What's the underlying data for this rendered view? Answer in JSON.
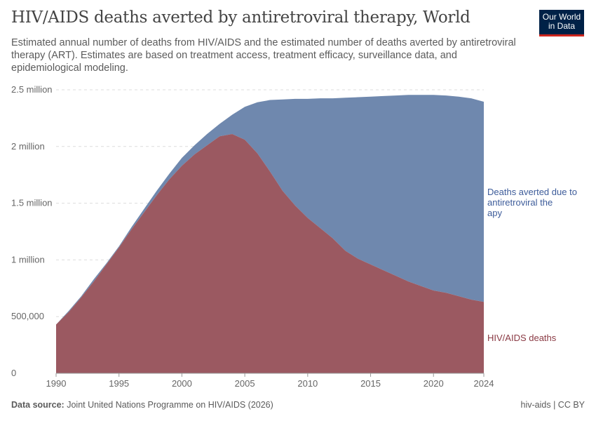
{
  "title": "HIV/AIDS deaths averted by antiretroviral therapy, World",
  "subtitle": "Estimated annual number of deaths from HIV/AIDS and the estimated number of deaths averted by antiretroviral therapy (ART). Estimates are based on treatment access, treatment efficacy, surveillance data, and epidemiological modeling.",
  "logo": {
    "line1": "Our World",
    "line2": "in Data"
  },
  "footer": {
    "source_label": "Data source:",
    "source": "Joint United Nations Programme on HIV/AIDS (2026)",
    "license": "hiv-aids | CC BY"
  },
  "colors": {
    "deaths": "#9b5961",
    "averted": "#6f88ae",
    "deaths_label": "#8a3a44",
    "averted_label": "#3d5c9a"
  },
  "chart_data": {
    "type": "area",
    "stacked": true,
    "title": "HIV/AIDS deaths averted by antiretroviral therapy, World",
    "x": [
      1990,
      1991,
      1992,
      1993,
      1994,
      1995,
      1996,
      1997,
      1998,
      1999,
      2000,
      2001,
      2002,
      2003,
      2004,
      2005,
      2006,
      2007,
      2008,
      2009,
      2010,
      2011,
      2012,
      2013,
      2014,
      2015,
      2016,
      2017,
      2018,
      2019,
      2020,
      2021,
      2022,
      2023,
      2024
    ],
    "series": [
      {
        "name": "HIV/AIDS deaths",
        "values": [
          430000,
          540000,
          670000,
          810000,
          960000,
          1110000,
          1270000,
          1420000,
          1570000,
          1710000,
          1830000,
          1930000,
          2010000,
          2090000,
          2110000,
          2060000,
          1940000,
          1780000,
          1610000,
          1480000,
          1370000,
          1280000,
          1190000,
          1080000,
          1010000,
          960000,
          910000,
          860000,
          810000,
          770000,
          730000,
          710000,
          680000,
          650000,
          630000
        ]
      },
      {
        "name": "Deaths averted due to antiretroviral therapy",
        "values": [
          0,
          10000,
          10000,
          20000,
          10000,
          10000,
          20000,
          30000,
          40000,
          50000,
          70000,
          80000,
          100000,
          110000,
          170000,
          290000,
          450000,
          630000,
          805000,
          940000,
          1050000,
          1145000,
          1235000,
          1350000,
          1425000,
          1480000,
          1535000,
          1590000,
          1645000,
          1685000,
          1725000,
          1740000,
          1760000,
          1775000,
          1765000
        ]
      }
    ],
    "xticks": [
      "1990",
      "1995",
      "2000",
      "2005",
      "2010",
      "2015",
      "2020",
      "2024"
    ],
    "yticks": [
      "0",
      "500,000",
      "1 million",
      "1.5 million",
      "2 million",
      "2.5 million"
    ],
    "ylim": [
      0,
      2500000
    ],
    "xlim": [
      1990,
      2024
    ],
    "grid": "horizontal dashed",
    "legend": "right, inline labels"
  }
}
